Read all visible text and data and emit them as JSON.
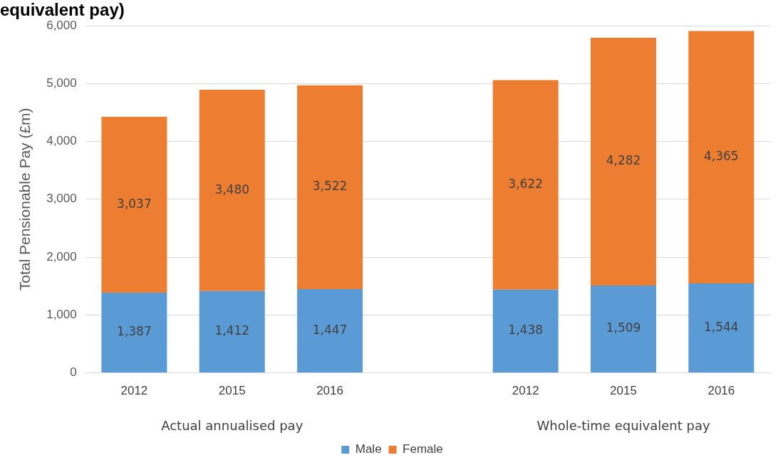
{
  "chart_data": {
    "type": "bar",
    "title": "equivalent pay)",
    "ylabel": "Total Pensionable Pay (£m)",
    "categories": [
      "2012",
      "2015",
      "2016",
      null,
      "2012",
      "2015",
      "2016"
    ],
    "series": [
      {
        "name": "Male",
        "color": "#5b9bd5",
        "values": [
          1387,
          1412,
          1447,
          null,
          1438,
          1509,
          1544
        ],
        "value_labels": [
          "1,387",
          "1,412",
          "1,447",
          null,
          "1,438",
          "1,509",
          "1,544"
        ]
      },
      {
        "name": "Female",
        "color": "#ed7d31",
        "values": [
          3037,
          3480,
          3522,
          null,
          3622,
          4282,
          4365
        ],
        "value_labels": [
          "3,037",
          "3,480",
          "3,522",
          null,
          "3,622",
          "4,282",
          "4,365"
        ]
      }
    ],
    "stacked": true,
    "ylim": [
      0,
      6000
    ],
    "yticks": [
      0,
      {
        "value": 1000,
        "label": "1,000"
      },
      {
        "value": 2000,
        "label": "2,000"
      },
      {
        "value": 3000,
        "label": "3,000"
      },
      {
        "value": 4000,
        "label": "4,000"
      },
      {
        "value": 5000,
        "label": "5,000"
      },
      {
        "value": 6000,
        "label": "6,000"
      }
    ],
    "grid": "y",
    "legend": "bottom",
    "annotations": [
      "Actual annualised pay",
      "Whole-time equivalent pay"
    ]
  }
}
